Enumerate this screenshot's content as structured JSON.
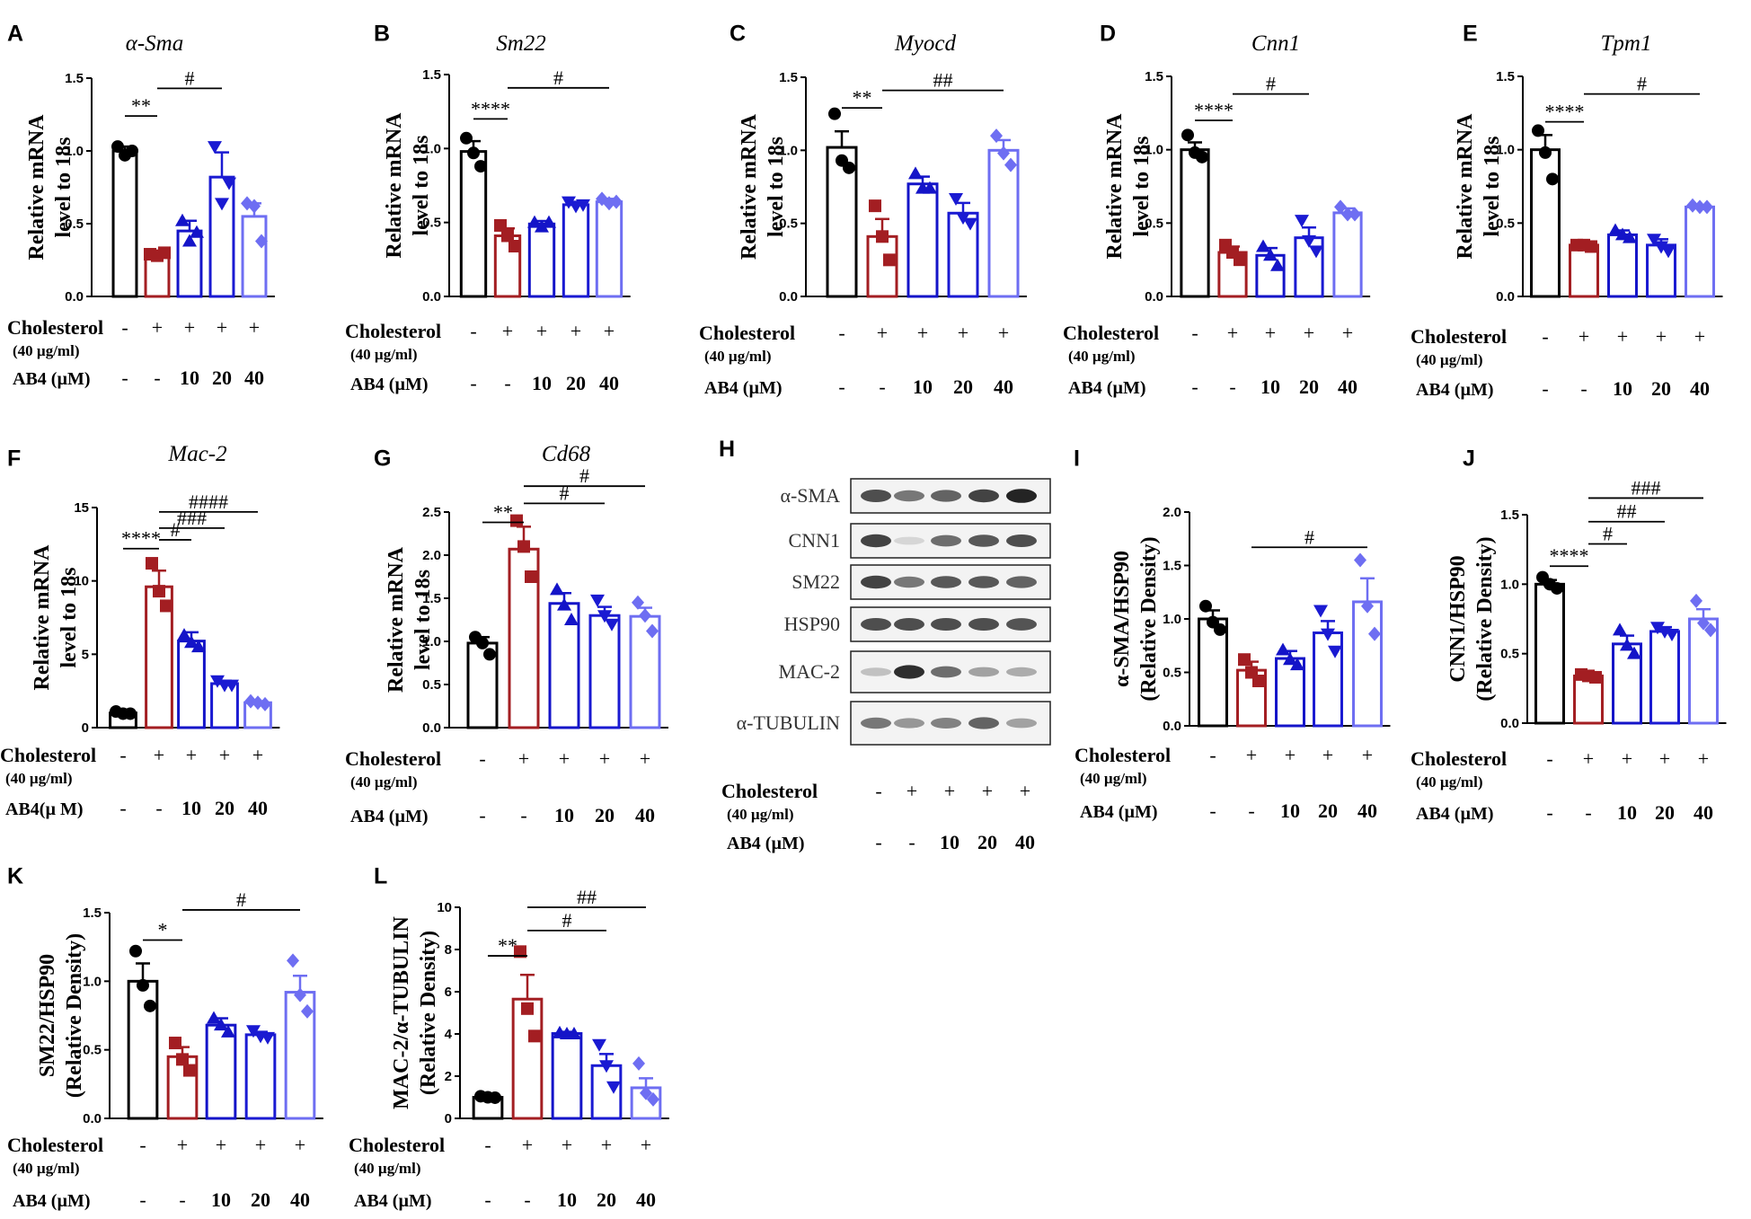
{
  "figure": {
    "treatment_rows": {
      "row1": {
        "label": "Cholesterol",
        "sub": "(40 µg/ml)",
        "values": [
          "-",
          "+",
          "+",
          "+",
          "+"
        ]
      },
      "row2_variants": [
        "AB4 (µM)",
        "AB4(µ M)"
      ],
      "row2_values": [
        "-",
        "-",
        "10",
        "20",
        "40"
      ]
    },
    "group_colors": [
      "#000000",
      "#a31e22",
      "#1414c8",
      "#1a1ad2",
      "#6e6ef2"
    ],
    "blot_label_colors": {
      "western": "#333333"
    }
  },
  "chart_data": [
    {
      "panel": "A",
      "type": "bar",
      "title": "α-Sma",
      "title_italic": true,
      "ylabel": [
        "Relative mRNA",
        "level to 18s"
      ],
      "ylim": [
        0,
        1.5
      ],
      "yticks": [
        "0.0",
        "0.5",
        "1.0",
        "1.5"
      ],
      "ytick_values": [
        0,
        0.5,
        1.0,
        1.5
      ],
      "values": [
        1.0,
        0.29,
        0.45,
        0.82,
        0.55
      ],
      "errors": [
        0.03,
        0.01,
        0.07,
        0.17,
        0.09
      ],
      "points": [
        [
          1.03,
          0.97,
          1.0
        ],
        [
          0.29,
          0.28,
          0.3
        ],
        [
          0.52,
          0.38,
          0.44
        ],
        [
          1.03,
          0.64,
          0.78
        ],
        [
          0.64,
          0.62,
          0.38
        ]
      ],
      "sig": [
        {
          "a": 0,
          "b": 1,
          "text": "**",
          "level": 1.24
        },
        {
          "a": 1,
          "b": 3,
          "text": "#",
          "level": 1.43
        }
      ],
      "treat_variant": 0
    },
    {
      "panel": "B",
      "type": "bar",
      "title": "Sm22",
      "title_italic": true,
      "ylabel": [
        "Relative mRNA",
        "level to 18s"
      ],
      "ylim": [
        0,
        1.5
      ],
      "yticks": [
        "0.0",
        "0.5",
        "1.0",
        "1.5"
      ],
      "ytick_values": [
        0,
        0.5,
        1.0,
        1.5
      ],
      "values": [
        0.98,
        0.41,
        0.49,
        0.62,
        0.64
      ],
      "errors": [
        0.07,
        0.05,
        0.02,
        0.02,
        0.02
      ],
      "points": [
        [
          1.07,
          0.97,
          0.88
        ],
        [
          0.48,
          0.41,
          0.34
        ],
        [
          0.5,
          0.47,
          0.5
        ],
        [
          0.64,
          0.61,
          0.62
        ],
        [
          0.66,
          0.63,
          0.64
        ]
      ],
      "sig": [
        {
          "a": 0,
          "b": 1,
          "text": "****",
          "level": 1.2
        },
        {
          "a": 1,
          "b": 4,
          "text": "#",
          "level": 1.41
        }
      ],
      "treat_variant": 0
    },
    {
      "panel": "C",
      "type": "bar",
      "title": "Myocd",
      "title_italic": true,
      "ylabel": [
        "Relative mRNA",
        "level to 18s"
      ],
      "ylim": [
        0,
        1.5
      ],
      "yticks": [
        "0.0",
        "0.5",
        "1.0",
        "1.5"
      ],
      "ytick_values": [
        0,
        0.5,
        1.0,
        1.5
      ],
      "values": [
        1.02,
        0.41,
        0.77,
        0.57,
        1.0
      ],
      "errors": [
        0.11,
        0.12,
        0.05,
        0.07,
        0.07
      ],
      "points": [
        [
          1.25,
          0.93,
          0.88
        ],
        [
          0.62,
          0.41,
          0.25
        ],
        [
          0.84,
          0.74,
          0.74
        ],
        [
          0.67,
          0.54,
          0.5
        ],
        [
          1.1,
          0.98,
          0.9
        ]
      ],
      "sig": [
        {
          "a": 0,
          "b": 1,
          "text": "**",
          "level": 1.29
        },
        {
          "a": 1,
          "b": 4,
          "text": "##",
          "level": 1.41
        }
      ],
      "treat_variant": 0
    },
    {
      "panel": "D",
      "type": "bar",
      "title": "Cnn1",
      "title_italic": true,
      "ylabel": [
        "Relative mRNA",
        "level to 18s"
      ],
      "ylim": [
        0,
        1.5
      ],
      "yticks": [
        "0.0",
        "0.5",
        "1.0",
        "1.5"
      ],
      "ytick_values": [
        0,
        0.5,
        1.0,
        1.5
      ],
      "values": [
        1.0,
        0.3,
        0.28,
        0.4,
        0.57
      ],
      "errors": [
        0.05,
        0.04,
        0.05,
        0.07,
        0.03
      ],
      "points": [
        [
          1.1,
          0.98,
          0.95
        ],
        [
          0.35,
          0.3,
          0.25
        ],
        [
          0.34,
          0.28,
          0.21
        ],
        [
          0.52,
          0.38,
          0.31
        ],
        [
          0.61,
          0.56,
          0.56
        ]
      ],
      "sig": [
        {
          "a": 0,
          "b": 1,
          "text": "****",
          "level": 1.2
        },
        {
          "a": 1,
          "b": 3,
          "text": "#",
          "level": 1.38
        }
      ],
      "treat_variant": 0
    },
    {
      "panel": "E",
      "type": "bar",
      "title": "Tpm1",
      "title_italic": true,
      "ylabel": [
        "Relative mRNA",
        "level to 18s"
      ],
      "ylim": [
        0,
        1.5
      ],
      "yticks": [
        "0.0",
        "0.5",
        "1.0",
        "1.5"
      ],
      "ytick_values": [
        0,
        0.5,
        1.0,
        1.5
      ],
      "values": [
        1.0,
        0.35,
        0.42,
        0.35,
        0.61
      ],
      "errors": [
        0.1,
        0.01,
        0.03,
        0.04,
        0.01
      ],
      "points": [
        [
          1.13,
          0.98,
          0.8
        ],
        [
          0.35,
          0.35,
          0.34
        ],
        [
          0.45,
          0.42,
          0.4
        ],
        [
          0.39,
          0.34,
          0.31
        ],
        [
          0.62,
          0.61,
          0.61
        ]
      ],
      "sig": [
        {
          "a": 0,
          "b": 1,
          "text": "****",
          "level": 1.19
        },
        {
          "a": 1,
          "b": 4,
          "text": "#",
          "level": 1.38
        }
      ],
      "treat_variant": 0
    },
    {
      "panel": "F",
      "type": "bar",
      "title": "Mac-2",
      "title_italic": true,
      "ylabel": [
        "Relative mRNA",
        "level to 18s"
      ],
      "ylim": [
        0,
        15
      ],
      "yticks": [
        "0",
        "5",
        "10",
        "15"
      ],
      "ytick_values": [
        0,
        5,
        10,
        15
      ],
      "values": [
        1.0,
        9.6,
        5.9,
        3.0,
        1.7
      ],
      "errors": [
        0.1,
        1.1,
        0.6,
        0.2,
        0.1
      ],
      "points": [
        [
          1.1,
          0.95,
          0.95
        ],
        [
          11.2,
          9.3,
          8.3
        ],
        [
          6.3,
          5.8,
          5.5
        ],
        [
          3.2,
          2.9,
          2.9
        ],
        [
          1.8,
          1.7,
          1.6
        ]
      ],
      "sig": [
        {
          "a": 0,
          "b": 1,
          "text": "****",
          "level": 12.2
        },
        {
          "a": 1,
          "b": 2,
          "text": "#",
          "level": 12.8
        },
        {
          "a": 1,
          "b": 3,
          "text": "###",
          "level": 13.6
        },
        {
          "a": 1,
          "b": 4,
          "text": "####",
          "level": 14.7
        }
      ],
      "treat_variant": 1
    },
    {
      "panel": "G",
      "type": "bar",
      "title": "Cd68",
      "title_italic": true,
      "ylabel": [
        "Relative mRNA",
        "level to 18s"
      ],
      "ylim": [
        0,
        2.5
      ],
      "yticks": [
        "0.0",
        "0.5",
        "1.0",
        "1.5",
        "2.0",
        "2.5"
      ],
      "ytick_values": [
        0,
        0.5,
        1.0,
        1.5,
        2.0,
        2.5
      ],
      "values": [
        0.98,
        2.07,
        1.44,
        1.3,
        1.29
      ],
      "errors": [
        0.07,
        0.26,
        0.12,
        0.1,
        0.1
      ],
      "points": [
        [
          1.05,
          0.98,
          0.85
        ],
        [
          2.4,
          2.1,
          1.75
        ],
        [
          1.6,
          1.42,
          1.25
        ],
        [
          1.48,
          1.3,
          1.2
        ],
        [
          1.45,
          1.3,
          1.12
        ]
      ],
      "sig": [
        {
          "a": 0,
          "b": 1,
          "text": "**",
          "level": 2.38
        },
        {
          "a": 1,
          "b": 3,
          "text": "#",
          "level": 2.6
        },
        {
          "a": 1,
          "b": 4,
          "text": "#",
          "level": 2.8
        }
      ],
      "treat_variant": 0
    },
    {
      "panel": "I",
      "type": "bar",
      "title": "",
      "title_italic": false,
      "ylabel": [
        "α-SMA/HSP90",
        "(Relative Density)"
      ],
      "ylim": [
        0,
        2.0
      ],
      "yticks": [
        "0.0",
        "0.5",
        "1.0",
        "1.5",
        "2.0"
      ],
      "ytick_values": [
        0,
        0.5,
        1.0,
        1.5,
        2.0
      ],
      "values": [
        1.0,
        0.52,
        0.63,
        0.87,
        1.16
      ],
      "errors": [
        0.08,
        0.08,
        0.07,
        0.11,
        0.22
      ],
      "points": [
        [
          1.12,
          0.97,
          0.9
        ],
        [
          0.62,
          0.5,
          0.42
        ],
        [
          0.71,
          0.62,
          0.57
        ],
        [
          1.08,
          0.86,
          0.7
        ],
        [
          1.55,
          1.12,
          0.86
        ]
      ],
      "sig": [
        {
          "a": 1,
          "b": 4,
          "text": "#",
          "level": 1.67
        }
      ],
      "treat_variant": 0
    },
    {
      "panel": "J",
      "type": "bar",
      "title": "",
      "title_italic": false,
      "ylabel": [
        "CNN1/HSP90",
        "(Relative Density)"
      ],
      "ylim": [
        0,
        1.5
      ],
      "yticks": [
        "0.0",
        "0.5",
        "1.0",
        "1.5"
      ],
      "ytick_values": [
        0,
        0.5,
        1.0,
        1.5
      ],
      "values": [
        1.0,
        0.34,
        0.57,
        0.66,
        0.75
      ],
      "errors": [
        0.03,
        0.01,
        0.06,
        0.03,
        0.07
      ],
      "points": [
        [
          1.05,
          1.0,
          0.97
        ],
        [
          0.35,
          0.34,
          0.33
        ],
        [
          0.67,
          0.56,
          0.5
        ],
        [
          0.69,
          0.66,
          0.64
        ],
        [
          0.88,
          0.72,
          0.67
        ]
      ],
      "sig": [
        {
          "a": 0,
          "b": 1,
          "text": "****",
          "level": 1.13
        },
        {
          "a": 1,
          "b": 2,
          "text": "#",
          "level": 1.29
        },
        {
          "a": 1,
          "b": 3,
          "text": "##",
          "level": 1.45
        },
        {
          "a": 1,
          "b": 4,
          "text": "###",
          "level": 1.62
        }
      ],
      "treat_variant": 0
    },
    {
      "panel": "K",
      "type": "bar",
      "title": "",
      "title_italic": false,
      "ylabel": [
        "SM22/HSP90",
        "(Relative Density)"
      ],
      "ylim": [
        0,
        1.5
      ],
      "yticks": [
        "0.0",
        "0.5",
        "1.0",
        "1.5"
      ],
      "ytick_values": [
        0,
        0.5,
        1.0,
        1.5
      ],
      "values": [
        1.0,
        0.45,
        0.68,
        0.61,
        0.92
      ],
      "errors": [
        0.13,
        0.07,
        0.05,
        0.02,
        0.12
      ],
      "points": [
        [
          1.22,
          0.97,
          0.82
        ],
        [
          0.55,
          0.43,
          0.35
        ],
        [
          0.73,
          0.68,
          0.63
        ],
        [
          0.64,
          0.6,
          0.59
        ],
        [
          1.15,
          0.9,
          0.78
        ]
      ],
      "sig": [
        {
          "a": 0,
          "b": 1,
          "text": "*",
          "level": 1.3
        },
        {
          "a": 1,
          "b": 4,
          "text": "#",
          "level": 1.52
        }
      ],
      "treat_variant": 0
    },
    {
      "panel": "L",
      "type": "bar",
      "title": "",
      "title_italic": false,
      "ylabel": [
        "MAC-2/α-TUBULIN",
        "(Relative Density)"
      ],
      "ylim": [
        0,
        10
      ],
      "yticks": [
        "0",
        "2",
        "4",
        "6",
        "8",
        "10"
      ],
      "ytick_values": [
        0,
        2,
        4,
        6,
        8,
        10
      ],
      "values": [
        1.0,
        5.65,
        4.02,
        2.5,
        1.45
      ],
      "errors": [
        0.05,
        1.15,
        0.08,
        0.55,
        0.45
      ],
      "points": [
        [
          1.05,
          1.0,
          0.98
        ],
        [
          7.9,
          5.2,
          3.9
        ],
        [
          4.05,
          4.0,
          4.0
        ],
        [
          3.5,
          2.5,
          1.5
        ],
        [
          2.6,
          1.2,
          0.9
        ]
      ],
      "sig": [
        {
          "a": 0,
          "b": 1,
          "text": "**",
          "level": 7.7
        },
        {
          "a": 1,
          "b": 3,
          "text": "#",
          "level": 8.9
        },
        {
          "a": 1,
          "b": 4,
          "text": "##",
          "level": 10.0
        }
      ],
      "treat_variant": 0
    }
  ],
  "western_blot": {
    "panel": "H",
    "bands": [
      "α-SMA",
      "CNN1",
      "SM22",
      "HSP90",
      "MAC-2",
      "α-TUBULIN"
    ],
    "intensities": [
      [
        0.75,
        0.55,
        0.65,
        0.8,
        0.95
      ],
      [
        0.8,
        0.1,
        0.6,
        0.7,
        0.75
      ],
      [
        0.8,
        0.55,
        0.7,
        0.7,
        0.65
      ],
      [
        0.75,
        0.75,
        0.75,
        0.75,
        0.72
      ],
      [
        0.2,
        0.9,
        0.6,
        0.35,
        0.3
      ],
      [
        0.55,
        0.4,
        0.5,
        0.65,
        0.35
      ]
    ]
  }
}
